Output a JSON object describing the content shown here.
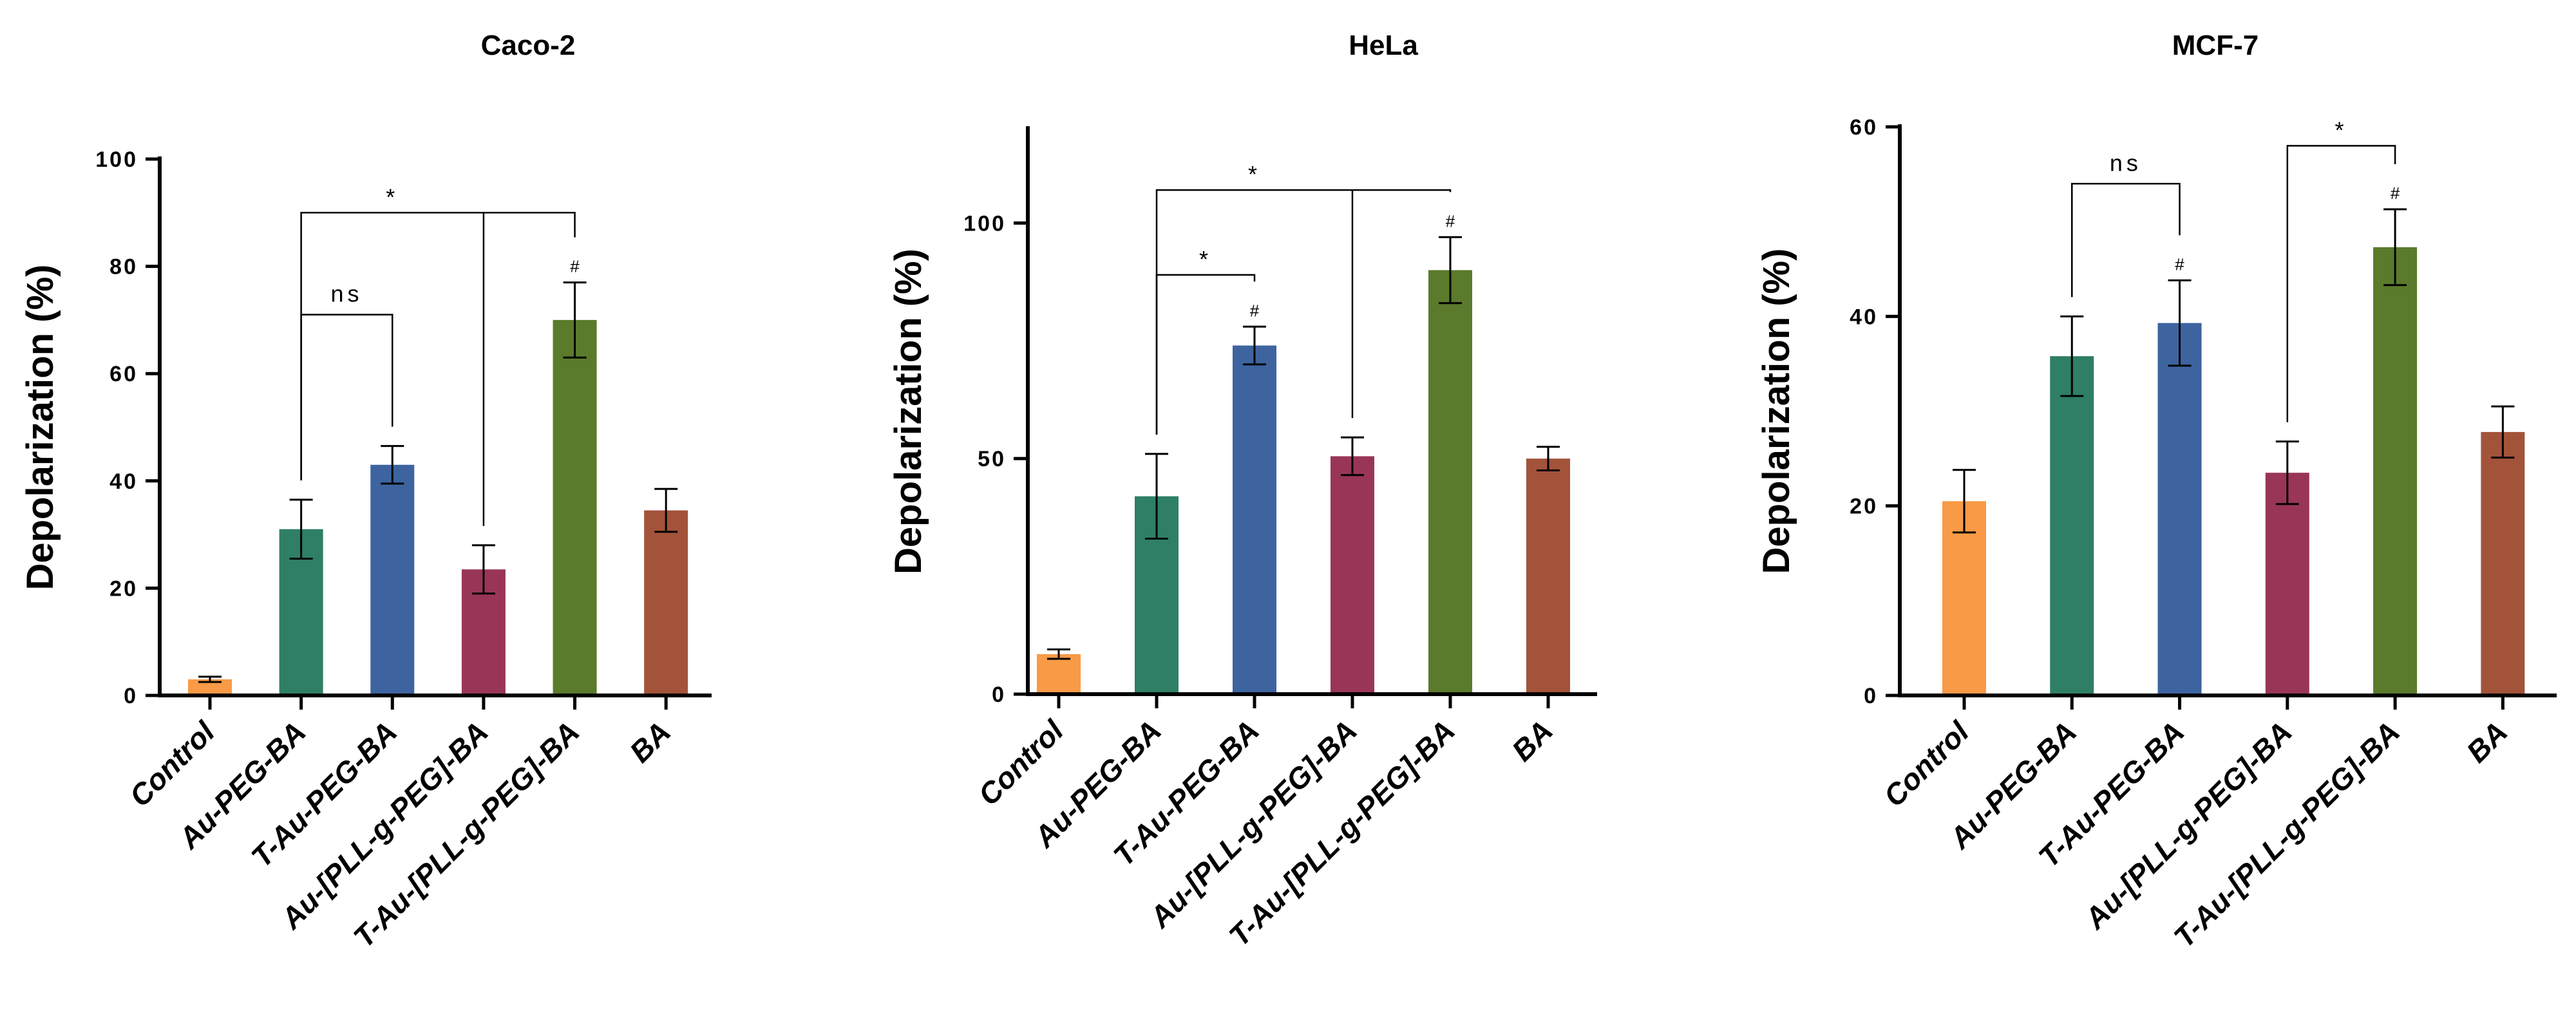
{
  "chart_data": [
    {
      "type": "bar",
      "title": "Caco-2",
      "ylabel": "Depolarization (%)",
      "xlabel": "",
      "ylim": [
        0,
        100
      ],
      "yticks": [
        0,
        20,
        40,
        60,
        80,
        100
      ],
      "categories": [
        "Control",
        "Au-PEG-BA",
        "T-Au-PEG-BA",
        "Au-[PLL-g-PEG]-BA",
        "T-Au-[PLL-g-PEG]-BA",
        "BA"
      ],
      "values": [
        3,
        31,
        43,
        23.5,
        70,
        34.5
      ],
      "errors": [
        0.5,
        5.5,
        3.5,
        4.5,
        7,
        4
      ],
      "colors": [
        "#f99a46",
        "#2e7f66",
        "#3e64a0",
        "#993658",
        "#5b7a2c",
        "#a3533a"
      ],
      "markers": [
        "",
        "",
        "",
        "",
        "#",
        ""
      ],
      "annotations": [
        {
          "label": "ns",
          "from": 1,
          "to": 2,
          "y": 71
        },
        {
          "label": "*",
          "from": 1,
          "to": 4,
          "via": 3,
          "y": 90
        }
      ]
    },
    {
      "type": "bar",
      "title": "HeLa",
      "ylabel": "Depolarization (%)",
      "xlabel": "",
      "ylim": [
        0,
        120
      ],
      "yticks": [
        0,
        50,
        100
      ],
      "categories": [
        "Control",
        "Au-PEG-BA",
        "T-Au-PEG-BA",
        "Au-[PLL-g-PEG]-BA",
        "T-Au-[PLL-g-PEG]-BA",
        "BA"
      ],
      "values": [
        8.5,
        42,
        74,
        50.5,
        90,
        50
      ],
      "errors": [
        1,
        9,
        4,
        4,
        7,
        2.5
      ],
      "colors": [
        "#f99a46",
        "#2e7f66",
        "#3e64a0",
        "#993658",
        "#5b7a2c",
        "#a3533a"
      ],
      "markers": [
        "",
        "",
        "#",
        "",
        "#",
        ""
      ],
      "annotations": [
        {
          "label": "*",
          "from": 1,
          "to": 2,
          "y": 89
        },
        {
          "label": "*",
          "from": 1,
          "to": 4,
          "via": 3,
          "y": 107
        }
      ]
    },
    {
      "type": "bar",
      "title": "MCF-7",
      "ylabel": "Depolarization (%)",
      "xlabel": "",
      "ylim": [
        0,
        60
      ],
      "yticks": [
        0,
        20,
        40,
        60
      ],
      "categories": [
        "Control",
        "Au-PEG-BA",
        "T-Au-PEG-BA",
        "Au-[PLL-g-PEG]-BA",
        "T-Au-[PLL-g-PEG]-BA",
        "BA"
      ],
      "values": [
        20.5,
        35.8,
        39.3,
        23.5,
        47.3,
        27.8
      ],
      "errors": [
        3.3,
        4.2,
        4.5,
        3.3,
        4,
        2.7
      ],
      "colors": [
        "#f99a46",
        "#2e7f66",
        "#3e64a0",
        "#993658",
        "#5b7a2c",
        "#a3533a"
      ],
      "markers": [
        "",
        "",
        "#",
        "",
        "#",
        ""
      ],
      "annotations": [
        {
          "label": "ns",
          "from": 1,
          "to": 2,
          "y": 54
        },
        {
          "label": "*",
          "from": 3,
          "to": 4,
          "y": 58
        }
      ]
    }
  ]
}
